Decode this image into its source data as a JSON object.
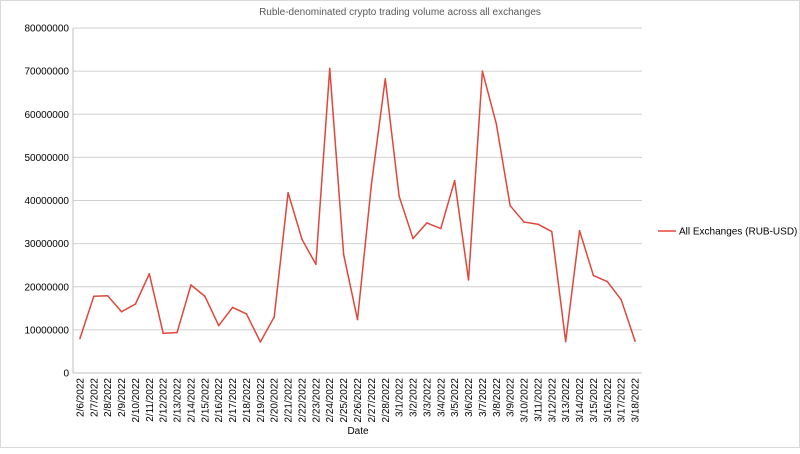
{
  "chart_data": {
    "type": "line",
    "title": "Ruble-denominated crypto trading volume across all exchanges",
    "xlabel": "Date",
    "ylabel": "",
    "ylim": [
      0,
      80000000
    ],
    "yticks": [
      "0",
      "10000000",
      "20000000",
      "30000000",
      "40000000",
      "50000000",
      "60000000",
      "70000000",
      "80000000"
    ],
    "grid": true,
    "legend_position": "right",
    "colors": {
      "series": "#e0463a",
      "grid": "#d0d0d0",
      "axis_text": "#000000",
      "title": "#595959"
    },
    "categories": [
      "2/6/2022",
      "2/7/2022",
      "2/8/2022",
      "2/9/2022",
      "2/10/2022",
      "2/11/2022",
      "2/12/2022",
      "2/13/2022",
      "2/14/2022",
      "2/15/2022",
      "2/16/2022",
      "2/17/2022",
      "2/18/2022",
      "2/19/2022",
      "2/20/2022",
      "2/21/2022",
      "2/22/2022",
      "2/23/2022",
      "2/24/2022",
      "2/25/2022",
      "2/26/2022",
      "2/27/2022",
      "2/28/2022",
      "3/1/2022",
      "3/2/2022",
      "3/3/2022",
      "3/4/2022",
      "3/5/2022",
      "3/6/2022",
      "3/7/2022",
      "3/8/2022",
      "3/9/2022",
      "3/10/2022",
      "3/11/2022",
      "3/12/2022",
      "3/13/2022",
      "3/14/2022",
      "3/15/2022",
      "3/16/2022",
      "3/17/2022",
      "3/18/2022"
    ],
    "series": [
      {
        "name": "All Exchanges (RUB-USD)",
        "values": [
          8000000,
          17800000,
          17900000,
          14200000,
          16000000,
          23000000,
          9200000,
          9400000,
          20400000,
          17800000,
          11000000,
          15200000,
          13700000,
          7200000,
          13000000,
          41800000,
          31000000,
          25200000,
          70600000,
          27500000,
          12400000,
          43600000,
          68200000,
          41000000,
          31200000,
          34800000,
          33500000,
          44600000,
          21600000,
          70000000,
          57800000,
          38800000,
          35000000,
          34500000,
          32800000,
          7300000,
          33000000,
          22600000,
          21200000,
          17000000,
          7400000
        ]
      }
    ]
  }
}
